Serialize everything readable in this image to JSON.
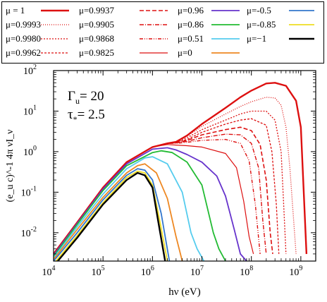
{
  "chart_data": {
    "type": "line",
    "xscale": "log",
    "yscale": "log",
    "xlim": [
      10000,
      2000000000
    ],
    "ylim": [
      0.002,
      100
    ],
    "xlabel": "hν (eV)",
    "ylabel": "(e_u c)^-1 4π νI_ν",
    "xticks": [
      {
        "value": 10000,
        "base": "10",
        "exp": "4"
      },
      {
        "value": 100000,
        "base": "10",
        "exp": "5"
      },
      {
        "value": 1000000,
        "base": "10",
        "exp": "6"
      },
      {
        "value": 10000000,
        "base": "10",
        "exp": "7"
      },
      {
        "value": 100000000,
        "base": "10",
        "exp": "8"
      },
      {
        "value": 1000000000,
        "base": "10",
        "exp": "9"
      }
    ],
    "yticks": [
      {
        "value": 0.01,
        "base": "10",
        "exp": "-2"
      },
      {
        "value": 0.1,
        "base": "10",
        "exp": "-1"
      },
      {
        "value": 1,
        "base": "10",
        "exp": "0"
      },
      {
        "value": 10,
        "base": "10",
        "exp": "1"
      },
      {
        "value": 100,
        "base": "10",
        "exp": "2"
      }
    ],
    "annotations": [
      {
        "symbol": "Γ",
        "sub": "u",
        "text": "= 20"
      },
      {
        "symbol": "τ",
        "sub": "*",
        "text": "= 2.5"
      }
    ],
    "series": [
      {
        "name": "μ = 1",
        "color": "#dd1010",
        "width": 2.4,
        "dash": "none",
        "x": [
          10000,
          30000,
          100000,
          300000,
          1000000,
          2000000,
          3000000,
          5000000,
          10000000,
          30000000,
          60000000,
          100000000,
          200000000,
          300000000,
          500000000,
          800000000,
          1000000000,
          1300000000
        ],
        "y": [
          0.003,
          0.018,
          0.13,
          0.55,
          1.3,
          1.6,
          1.75,
          2.5,
          4.8,
          12,
          22,
          32,
          48,
          50,
          42,
          18,
          4,
          0.003
        ]
      },
      {
        "name": "μ=0.9993",
        "color": "#dd1010",
        "width": 1.3,
        "dash": "1,2",
        "x": [
          10000,
          30000,
          100000,
          300000,
          1000000,
          2000000,
          3000000,
          5000000,
          10000000,
          30000000,
          60000000,
          100000000,
          200000000,
          300000000,
          400000000,
          500000000,
          600000000,
          800000000
        ],
        "y": [
          0.003,
          0.018,
          0.13,
          0.55,
          1.3,
          1.6,
          1.75,
          2.4,
          4.2,
          8.5,
          13,
          17,
          22,
          21,
          14,
          4,
          0.4,
          0.003
        ]
      },
      {
        "name": "μ=0.9980",
        "color": "#dd1010",
        "width": 1.3,
        "dash": "2,2",
        "x": [
          10000,
          30000,
          100000,
          300000,
          1000000,
          2000000,
          3000000,
          5000000,
          10000000,
          30000000,
          60000000,
          100000000,
          200000000,
          300000000,
          400000000,
          450000000,
          500000000
        ],
        "y": [
          0.003,
          0.018,
          0.13,
          0.55,
          1.3,
          1.6,
          1.7,
          2.2,
          3.5,
          6,
          8.5,
          10,
          10,
          6,
          1,
          0.05,
          0.003
        ]
      },
      {
        "name": "μ=0.9962",
        "color": "#dd1010",
        "width": 1.3,
        "dash": "3,2",
        "x": [
          10000,
          30000,
          100000,
          300000,
          1000000,
          2000000,
          3000000,
          5000000,
          10000000,
          30000000,
          60000000,
          100000000,
          200000000,
          260000000,
          320000000,
          360000000
        ],
        "y": [
          0.003,
          0.018,
          0.13,
          0.55,
          1.3,
          1.6,
          1.7,
          2.0,
          3.0,
          4.8,
          6,
          6.5,
          4.5,
          1,
          0.05,
          0.003
        ]
      },
      {
        "name": "μ=0.9937",
        "color": "#dd1010",
        "width": 1.6,
        "dash": "6,3",
        "x": [
          10000,
          30000,
          100000,
          300000,
          1000000,
          2000000,
          3000000,
          5000000,
          10000000,
          30000000,
          60000000,
          100000000,
          150000000,
          200000000,
          240000000,
          270000000
        ],
        "y": [
          0.003,
          0.018,
          0.13,
          0.55,
          1.3,
          1.6,
          1.65,
          1.9,
          2.6,
          3.5,
          4,
          3.3,
          1.5,
          0.2,
          0.01,
          0.003
        ]
      },
      {
        "name": "μ=0.9905",
        "color": "#dd1010",
        "width": 1.4,
        "dash": "6,2,1,2",
        "x": [
          10000,
          30000,
          100000,
          300000,
          1000000,
          2000000,
          3000000,
          5000000,
          10000000,
          30000000,
          60000000,
          100000000,
          140000000,
          170000000,
          200000000
        ],
        "y": [
          0.003,
          0.018,
          0.13,
          0.55,
          1.3,
          1.6,
          1.65,
          1.8,
          2.2,
          2.7,
          2.6,
          1.6,
          0.4,
          0.02,
          0.003
        ]
      },
      {
        "name": "μ=0.9868",
        "color": "#dd1010",
        "width": 1.4,
        "dash": "5,2,1,2,1,2",
        "x": [
          10000,
          30000,
          100000,
          300000,
          1000000,
          2000000,
          3000000,
          5000000,
          10000000,
          30000000,
          60000000,
          90000000,
          120000000,
          150000000
        ],
        "y": [
          0.003,
          0.018,
          0.13,
          0.55,
          1.3,
          1.6,
          1.6,
          1.7,
          1.9,
          2.0,
          1.6,
          0.6,
          0.05,
          0.003
        ]
      },
      {
        "name": "μ=0.9825",
        "color": "#dd1010",
        "width": 1.2,
        "dash": "none",
        "x": [
          10000,
          30000,
          100000,
          300000,
          1000000,
          2000000,
          3000000,
          5000000,
          10000000,
          30000000,
          50000000,
          70000000,
          90000000,
          110000000
        ],
        "y": [
          0.003,
          0.018,
          0.13,
          0.55,
          1.3,
          1.5,
          1.45,
          1.4,
          1.3,
          0.9,
          0.4,
          0.06,
          0.008,
          0.003
        ]
      },
      {
        "name": "μ=0.96",
        "color": "#6633cc",
        "width": 1.8,
        "dash": "none",
        "x": [
          10000,
          30000,
          100000,
          300000,
          1000000,
          2000000,
          3000000,
          5000000,
          10000000,
          20000000,
          30000000,
          45000000,
          60000000,
          80000000
        ],
        "y": [
          0.0028,
          0.017,
          0.12,
          0.5,
          1.15,
          1.25,
          1.1,
          0.85,
          0.55,
          0.25,
          0.08,
          0.012,
          0.003,
          0.002
        ]
      },
      {
        "name": "μ=0.86",
        "color": "#22bb33",
        "width": 1.8,
        "dash": "none",
        "x": [
          10000,
          30000,
          100000,
          300000,
          1000000,
          1500000,
          2500000,
          5000000,
          10000000,
          17000000,
          22000000,
          30000000
        ],
        "y": [
          0.0026,
          0.016,
          0.11,
          0.45,
          0.95,
          1.05,
          0.95,
          0.55,
          0.15,
          0.01,
          0.004,
          0.002
        ]
      },
      {
        "name": "μ=0.51",
        "color": "#55ccee",
        "width": 1.8,
        "dash": "none",
        "x": [
          10000,
          30000,
          100000,
          300000,
          700000,
          1000000,
          2000000,
          4000000,
          6000000,
          8000000,
          11000000
        ],
        "y": [
          0.0024,
          0.014,
          0.09,
          0.38,
          0.7,
          0.75,
          0.5,
          0.1,
          0.01,
          0.004,
          0.002
        ]
      },
      {
        "name": "μ=0",
        "color": "#ee8822",
        "width": 1.8,
        "dash": "none",
        "x": [
          10000,
          30000,
          100000,
          300000,
          500000,
          700000,
          1200000,
          2000000,
          3000000,
          4000000
        ],
        "y": [
          0.0022,
          0.012,
          0.075,
          0.3,
          0.45,
          0.5,
          0.3,
          0.07,
          0.008,
          0.002
        ]
      },
      {
        "name": "μ=-0.5",
        "color": "#3377cc",
        "width": 1.8,
        "dash": "none",
        "x": [
          10000,
          30000,
          100000,
          300000,
          500000,
          700000,
          1000000,
          1500000,
          2200000
        ],
        "y": [
          0.002,
          0.01,
          0.065,
          0.26,
          0.38,
          0.35,
          0.2,
          0.03,
          0.002
        ]
      },
      {
        "name": "μ=-0.85",
        "color": "#eedd22",
        "width": 1.8,
        "dash": "none",
        "x": [
          10000,
          30000,
          100000,
          300000,
          500000,
          700000,
          1000000,
          1400000,
          2000000
        ],
        "y": [
          0.0017,
          0.0085,
          0.055,
          0.23,
          0.33,
          0.3,
          0.15,
          0.02,
          0.002
        ]
      },
      {
        "name": "μ=−1",
        "color": "#000000",
        "width": 2.4,
        "dash": "none",
        "x": [
          10000,
          30000,
          100000,
          300000,
          500000,
          700000,
          1000000,
          1300000,
          1800000
        ],
        "y": [
          0.0015,
          0.0075,
          0.05,
          0.2,
          0.3,
          0.26,
          0.13,
          0.02,
          0.002
        ]
      }
    ]
  }
}
